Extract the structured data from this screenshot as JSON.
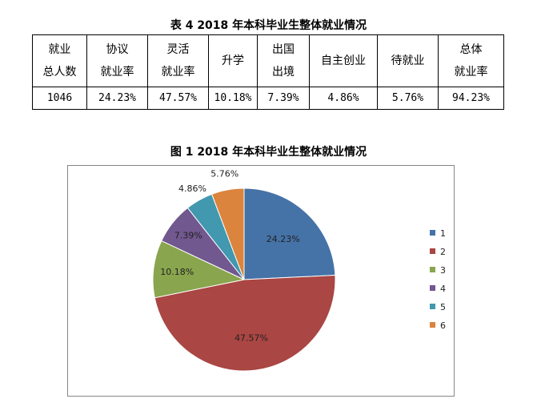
{
  "table_title": "表 4   2018 年本科毕业生整体就业情况",
  "table": {
    "headers": [
      [
        "就业",
        "总人数"
      ],
      [
        "协议",
        "就业率"
      ],
      [
        "灵活",
        "就业率"
      ],
      [
        "升学"
      ],
      [
        "出国",
        "出境"
      ],
      [
        "自主创业"
      ],
      [
        "待就业"
      ],
      [
        "总体",
        "就业率"
      ]
    ],
    "values": [
      "1046",
      "24.23%",
      "47.57%",
      "10.18%",
      "7.39%",
      "4.86%",
      "5.76%",
      "94.23%"
    ]
  },
  "figure_title": "图 1    2018 年本科毕业生整体就业情况",
  "chart_data": {
    "type": "pie",
    "categories": [
      "1",
      "2",
      "3",
      "4",
      "5",
      "6"
    ],
    "values": [
      24.23,
      47.57,
      10.18,
      7.39,
      4.86,
      5.76
    ],
    "labels": [
      "24.23%",
      "47.57%",
      "10.18%",
      "7.39%",
      "4.86%",
      "5.76%"
    ],
    "colors": [
      "#4572A7",
      "#AA4643",
      "#89A54E",
      "#71588F",
      "#4198AF",
      "#DB843D"
    ],
    "start_angle_deg": 0,
    "direction": "clockwise",
    "legend_position": "right"
  }
}
